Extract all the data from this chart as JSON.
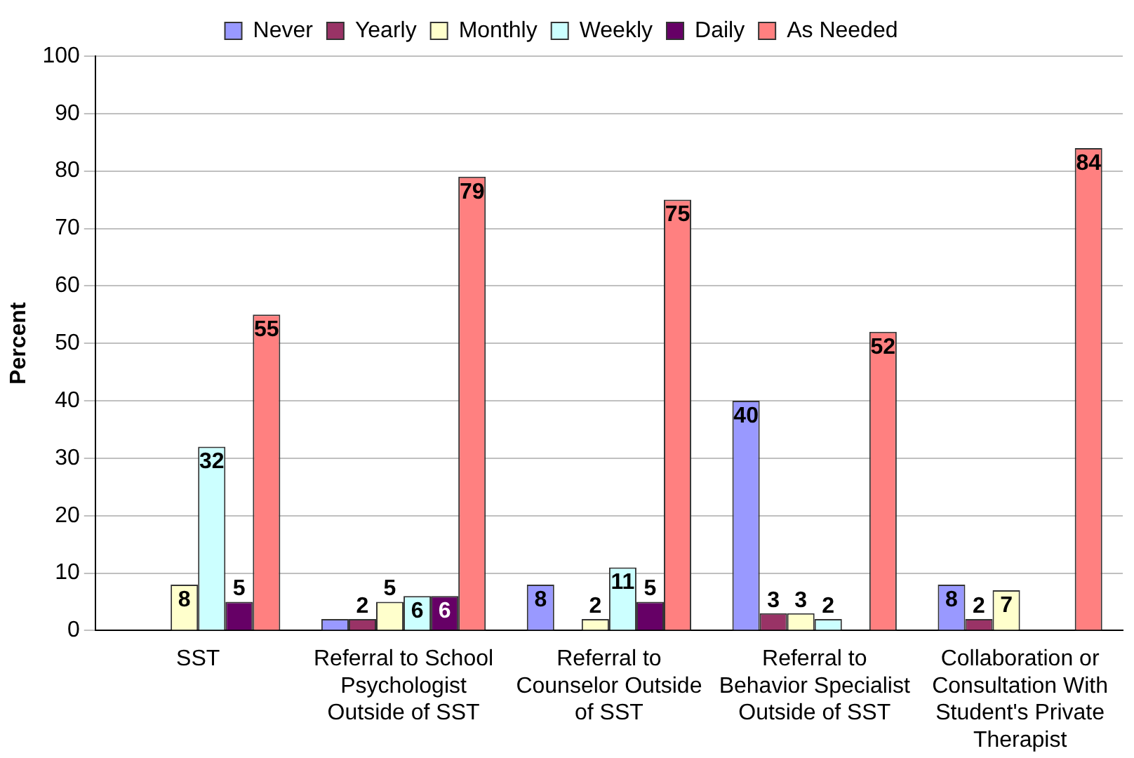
{
  "chart_data": {
    "type": "bar",
    "ylabel": "Percent",
    "categories": [
      "SST",
      "Referral to School Psychologist Outside of SST",
      "Referral to Counselor Outside of SST",
      "Referral to Behavior Specialist Outside of SST",
      "Collaboration or Consultation With Student's Private Therapist"
    ],
    "series": [
      {
        "name": "Never",
        "color": "#9999ff",
        "values": [
          null,
          2,
          8,
          40,
          8
        ],
        "value_labels": [
          null,
          null,
          "8",
          "40",
          "8"
        ]
      },
      {
        "name": "Yearly",
        "color": "#993366",
        "values": [
          null,
          2,
          null,
          3,
          2
        ],
        "value_labels": [
          null,
          "2",
          null,
          "3",
          "2"
        ]
      },
      {
        "name": "Monthly",
        "color": "#ffffcc",
        "values": [
          8,
          5,
          2,
          3,
          7
        ],
        "value_labels": [
          "8",
          "5",
          "2",
          "3",
          "7"
        ]
      },
      {
        "name": "Weekly",
        "color": "#ccffff",
        "values": [
          32,
          6,
          11,
          2,
          null
        ],
        "value_labels": [
          "32",
          "6",
          "11",
          "2",
          null
        ]
      },
      {
        "name": "Daily",
        "color": "#660066",
        "values": [
          5,
          6,
          5,
          null,
          null
        ],
        "value_labels": [
          "5",
          "6",
          "5",
          null,
          null
        ]
      },
      {
        "name": "As Needed",
        "color": "#ff8080",
        "values": [
          55,
          79,
          75,
          52,
          84
        ],
        "value_labels": [
          "55",
          "79",
          "75",
          "52",
          "84"
        ]
      }
    ],
    "ylim": [
      0,
      100
    ],
    "yticks": [
      0,
      10,
      20,
      30,
      40,
      50,
      60,
      70,
      80,
      90,
      100
    ],
    "grid": "y",
    "legend": "top"
  }
}
